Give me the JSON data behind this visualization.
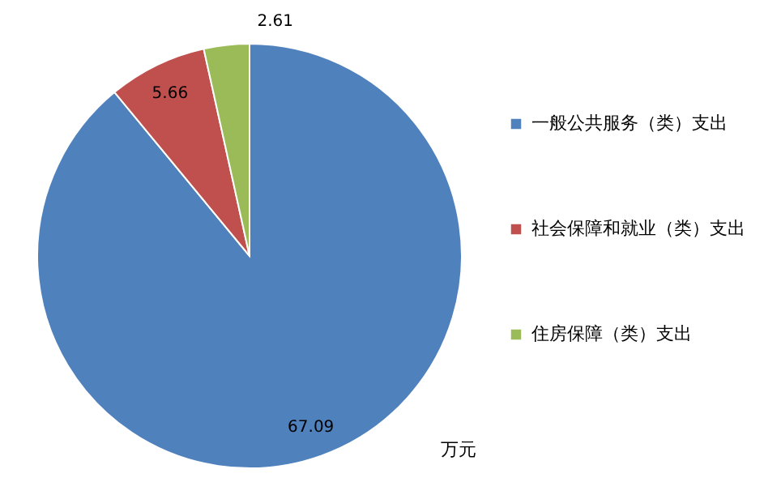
{
  "chart_data": {
    "type": "pie",
    "categories": [
      "一般公共服务（类）支出",
      "社会保障和就业（类）支出",
      "住房保障（类）支出"
    ],
    "values": [
      67.09,
      5.66,
      2.61
    ],
    "colors": [
      "#4f81bd",
      "#c0504d",
      "#9bbb59"
    ],
    "data_labels": true,
    "legend": "right",
    "annotations": [
      "万元"
    ]
  }
}
